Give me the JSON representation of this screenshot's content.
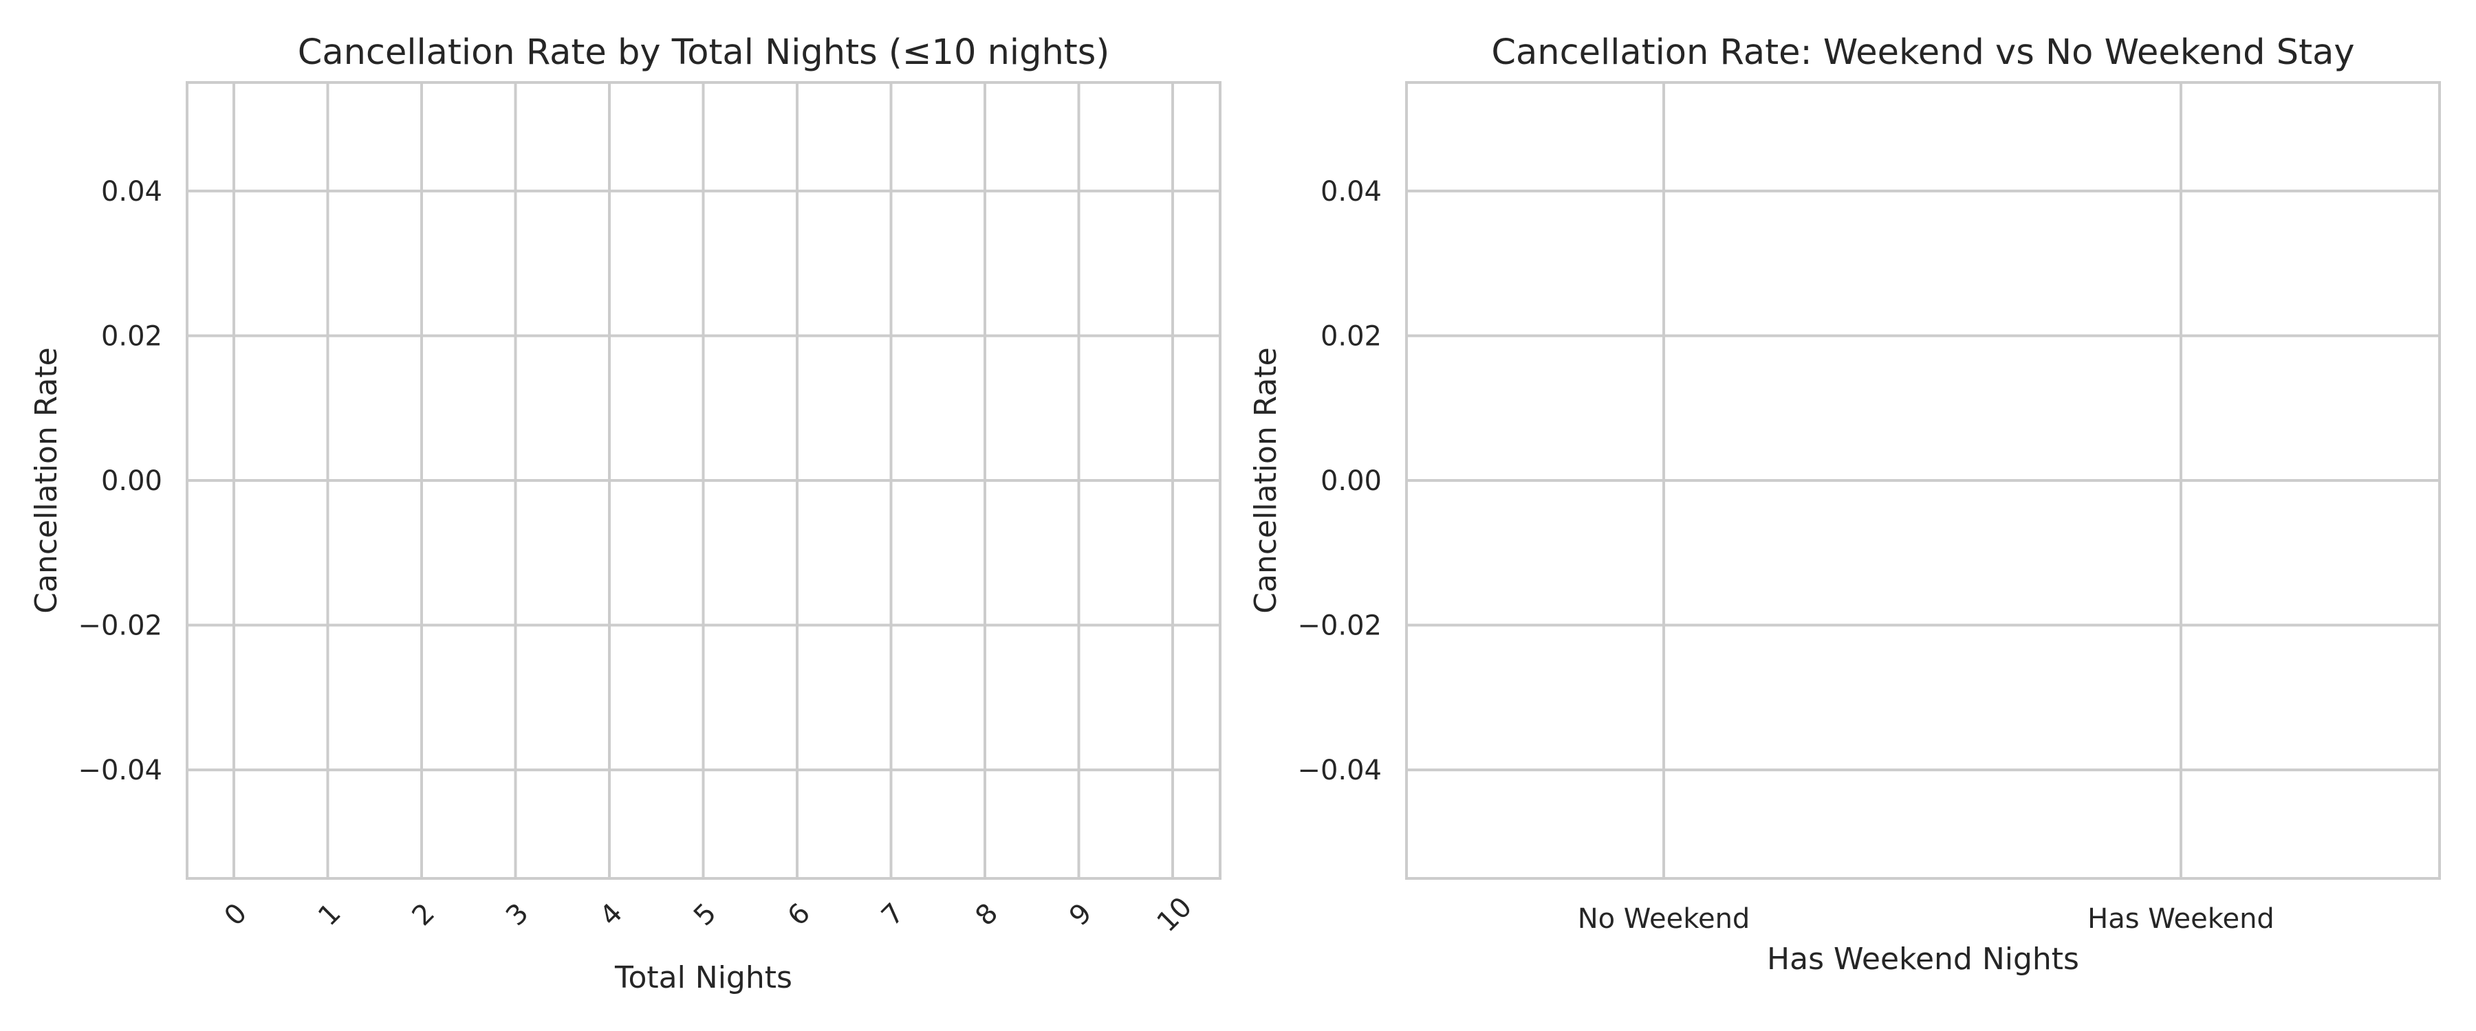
{
  "chart_data": [
    {
      "type": "bar",
      "title": "Cancellation Rate by Total Nights (≤10 nights)",
      "xlabel": "Total Nights",
      "ylabel": "Cancellation Rate",
      "categories": [
        "0",
        "1",
        "2",
        "3",
        "4",
        "5",
        "6",
        "7",
        "8",
        "9",
        "10"
      ],
      "values": [
        0,
        0,
        0,
        0,
        0,
        0,
        0,
        0,
        0,
        0,
        0
      ],
      "ylim": [
        -0.055,
        0.055
      ],
      "yticks": [
        "0.04",
        "0.02",
        "0.00",
        "−0.02",
        "−0.04"
      ],
      "ytick_values": [
        0.04,
        0.02,
        0.0,
        -0.02,
        -0.04
      ],
      "x_tick_rotation": 45,
      "grid": true,
      "bar_color": "#cccccc"
    },
    {
      "type": "bar",
      "title": "Cancellation Rate: Weekend vs No Weekend Stay",
      "xlabel": "Has Weekend Nights",
      "ylabel": "Cancellation Rate",
      "categories": [
        "No Weekend",
        "Has Weekend"
      ],
      "values": [
        0,
        0
      ],
      "ylim": [
        -0.055,
        0.055
      ],
      "yticks": [
        "0.04",
        "0.02",
        "0.00",
        "−0.02",
        "−0.04"
      ],
      "ytick_values": [
        0.04,
        0.02,
        0.0,
        -0.02,
        -0.04
      ],
      "x_tick_rotation": 0,
      "grid": true,
      "bar_color": "#cccccc"
    }
  ],
  "colors": {
    "grid": "#cccccc",
    "spine": "#cccccc",
    "text": "#262626",
    "background": "#ffffff"
  }
}
